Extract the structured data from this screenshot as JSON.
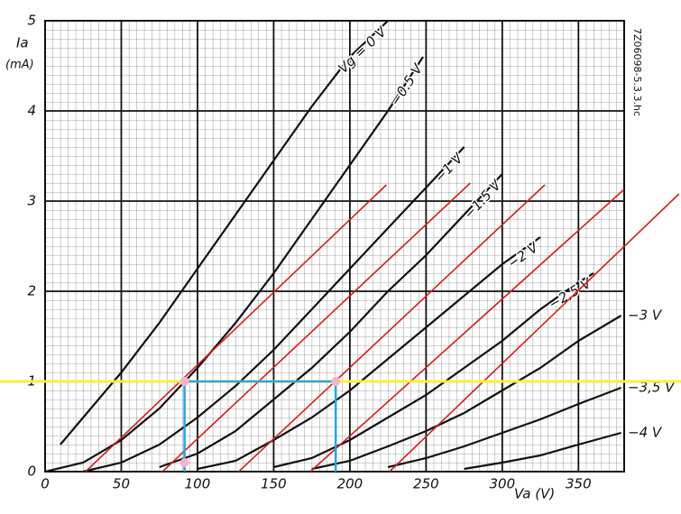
{
  "chart_data": {
    "type": "line",
    "y_label": "Ia",
    "y_unit": "(mA)",
    "x_label": "Va (V)",
    "code": "7Z06098-5.3.3.hc",
    "xlim": [
      0,
      380
    ],
    "ylim": [
      0,
      5
    ],
    "xticks": [
      0,
      50,
      100,
      150,
      200,
      250,
      300,
      350
    ],
    "yticks": [
      0,
      1,
      2,
      3,
      4,
      5
    ],
    "grid": true,
    "series": [
      {
        "name": "Vg = 0 V",
        "color": "#111111",
        "x": [
          10,
          25,
          50,
          75,
          100,
          125,
          150,
          175,
          200,
          225
        ],
        "values": [
          0.3,
          0.6,
          1.1,
          1.65,
          2.25,
          2.85,
          3.45,
          4.05,
          4.6,
          5.0
        ]
      },
      {
        "name": "−0.5 V",
        "color": "#111111",
        "x": [
          0,
          25,
          50,
          75,
          100,
          125,
          150,
          175,
          200,
          225,
          248
        ],
        "values": [
          0,
          0.1,
          0.35,
          0.7,
          1.15,
          1.65,
          2.2,
          2.8,
          3.4,
          4.0,
          4.6
        ]
      },
      {
        "name": "−1 V",
        "color": "#111111",
        "x": [
          25,
          50,
          75,
          100,
          125,
          150,
          175,
          200,
          225,
          250,
          275
        ],
        "values": [
          0,
          0.1,
          0.3,
          0.6,
          0.95,
          1.35,
          1.8,
          2.25,
          2.7,
          3.15,
          3.6
        ]
      },
      {
        "name": "−1.5 V",
        "color": "#111111",
        "x": [
          75,
          100,
          125,
          150,
          175,
          200,
          225,
          250,
          275,
          300
        ],
        "values": [
          0.05,
          0.2,
          0.45,
          0.8,
          1.15,
          1.55,
          2.0,
          2.4,
          2.85,
          3.3
        ]
      },
      {
        "name": "−2 V",
        "color": "#111111",
        "x": [
          100,
          125,
          150,
          175,
          200,
          225,
          250,
          275,
          300,
          325
        ],
        "values": [
          0.03,
          0.12,
          0.35,
          0.6,
          0.9,
          1.25,
          1.6,
          1.95,
          2.3,
          2.6
        ]
      },
      {
        "name": "−2,5 V",
        "color": "#111111",
        "x": [
          150,
          175,
          200,
          225,
          250,
          275,
          300,
          325,
          350,
          360
        ],
        "values": [
          0.05,
          0.15,
          0.35,
          0.6,
          0.85,
          1.15,
          1.45,
          1.8,
          2.1,
          2.2
        ]
      },
      {
        "name": "−3 V",
        "color": "#111111",
        "x": [
          175,
          200,
          225,
          250,
          275,
          300,
          325,
          350,
          378
        ],
        "values": [
          0.03,
          0.12,
          0.28,
          0.45,
          0.65,
          0.9,
          1.15,
          1.45,
          1.73
        ]
      },
      {
        "name": "−3,5 V",
        "color": "#111111",
        "x": [
          225,
          250,
          275,
          300,
          325,
          350,
          378
        ],
        "values": [
          0.05,
          0.15,
          0.28,
          0.43,
          0.58,
          0.75,
          0.93
        ]
      },
      {
        "name": "−4 V",
        "color": "#111111",
        "x": [
          275,
          300,
          325,
          350,
          378
        ],
        "values": [
          0.03,
          0.1,
          0.18,
          0.3,
          0.43
        ]
      }
    ],
    "load_line_color": "#cc1f1f",
    "load_lines": [
      {
        "x": [
          26.6,
          224
        ],
        "values": [
          0,
          3.18
        ]
      },
      {
        "x": [
          77,
          279
        ],
        "values": [
          0,
          3.2
        ]
      },
      {
        "x": [
          127,
          328
        ],
        "values": [
          0,
          3.18
        ]
      },
      {
        "x": [
          174,
          380
        ],
        "values": [
          0,
          3.13
        ]
      },
      {
        "x": [
          226,
          416
        ],
        "values": [
          0,
          3.08
        ]
      }
    ],
    "hline": {
      "value": 1,
      "color": "#ffee33"
    },
    "guides": {
      "x": [
        91.5,
        91.5,
        190.7,
        190.7
      ],
      "values": [
        0,
        1,
        1,
        0
      ],
      "color": "#2aa6dc"
    },
    "markers": {
      "x": [
        91.5,
        190.7,
        91.5
      ],
      "values": [
        1,
        1,
        0.1
      ],
      "color": "#f5b5c8"
    }
  }
}
